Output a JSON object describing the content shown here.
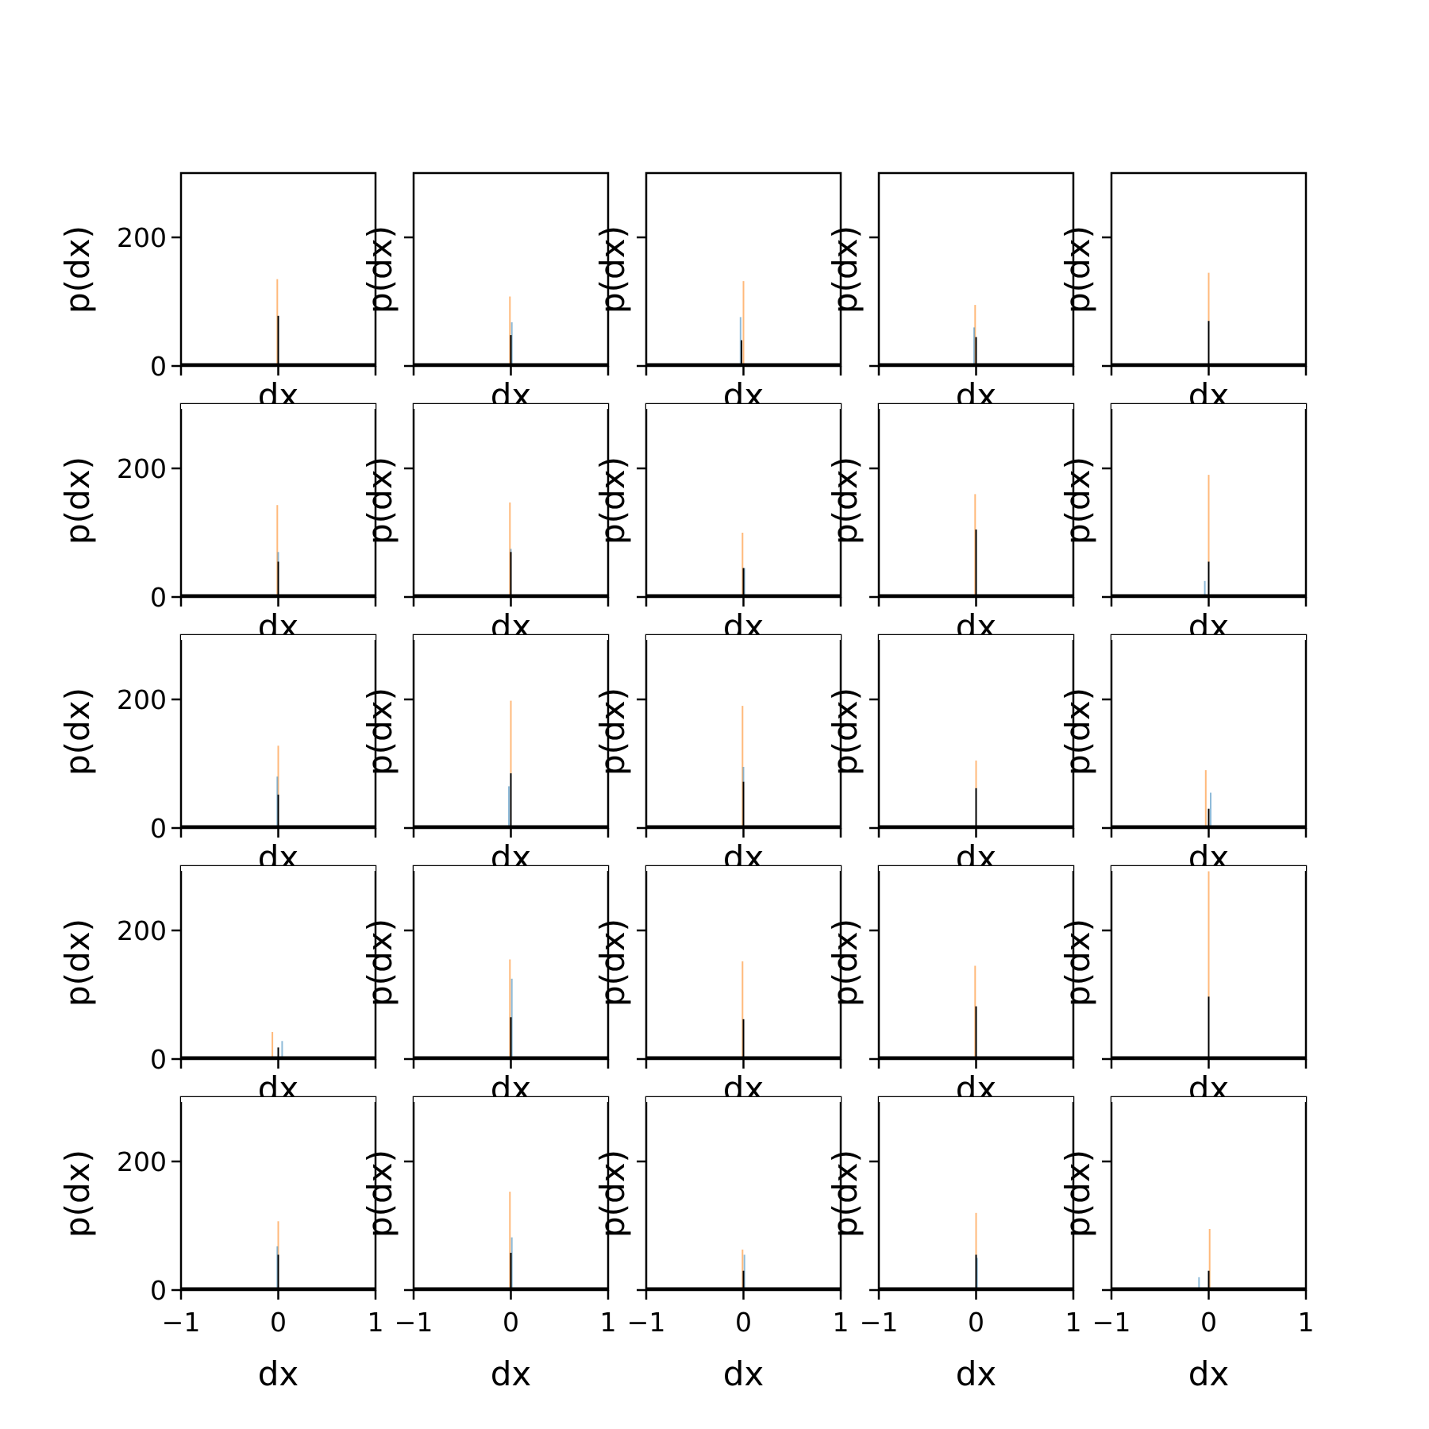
{
  "colors": {
    "series_blue": "#1f77b4",
    "series_orange": "#ff7f0e",
    "overlay_black": "#000000",
    "axes": "#000000",
    "background": "#ffffff"
  },
  "labels": {
    "x": "dx",
    "y": "p(dx)"
  },
  "chart_data": {
    "type": "grid-of-histograms",
    "rows": 5,
    "cols": 5,
    "xlim": [
      -1,
      1
    ],
    "ylim": [
      0,
      300
    ],
    "xticks": [
      -1,
      0,
      1
    ],
    "xtick_labels": [
      "−1",
      "0",
      "1"
    ],
    "yticks": [
      0,
      200
    ],
    "ytick_labels": [
      "0",
      "200"
    ],
    "xlabel": "dx",
    "ylabel": "p(dx)",
    "grid": false,
    "panels": [
      {
        "orange": [
          {
            "x": -0.01,
            "y": 135
          }
        ],
        "blue": [
          {
            "x": 0.0,
            "y": 75
          }
        ],
        "black": [
          {
            "x": 0.0,
            "y": 78
          }
        ]
      },
      {
        "orange": [
          {
            "x": -0.01,
            "y": 108
          }
        ],
        "blue": [
          {
            "x": 0.01,
            "y": 68
          }
        ],
        "black": [
          {
            "x": 0.0,
            "y": 48
          }
        ]
      },
      {
        "orange": [
          {
            "x": 0.0,
            "y": 132
          }
        ],
        "blue": [
          {
            "x": -0.03,
            "y": 76
          }
        ],
        "black": [
          {
            "x": -0.02,
            "y": 40
          }
        ]
      },
      {
        "orange": [
          {
            "x": -0.01,
            "y": 95
          }
        ],
        "blue": [
          {
            "x": -0.02,
            "y": 60
          }
        ],
        "black": [
          {
            "x": 0.0,
            "y": 45
          }
        ]
      },
      {
        "orange": [
          {
            "x": 0.0,
            "y": 145
          }
        ],
        "blue": [
          {
            "x": 0.0,
            "y": 70
          }
        ],
        "black": [
          {
            "x": 0.0,
            "y": 70
          }
        ]
      },
      {
        "orange": [
          {
            "x": -0.01,
            "y": 143
          }
        ],
        "blue": [
          {
            "x": 0.0,
            "y": 70
          }
        ],
        "black": [
          {
            "x": 0.0,
            "y": 55
          }
        ]
      },
      {
        "orange": [
          {
            "x": -0.01,
            "y": 147
          }
        ],
        "blue": [
          {
            "x": 0.0,
            "y": 75
          }
        ],
        "black": [
          {
            "x": 0.0,
            "y": 70
          }
        ]
      },
      {
        "orange": [
          {
            "x": -0.01,
            "y": 100
          }
        ],
        "blue": [
          {
            "x": 0.01,
            "y": 45
          }
        ],
        "black": [
          {
            "x": 0.0,
            "y": 45
          }
        ]
      },
      {
        "orange": [
          {
            "x": -0.01,
            "y": 160
          }
        ],
        "blue": [
          {
            "x": 0.0,
            "y": 100
          }
        ],
        "black": [
          {
            "x": 0.0,
            "y": 105
          }
        ]
      },
      {
        "orange": [
          {
            "x": 0.0,
            "y": 190
          }
        ],
        "blue": [
          {
            "x": -0.04,
            "y": 25
          }
        ],
        "black": [
          {
            "x": 0.0,
            "y": 55
          }
        ]
      },
      {
        "orange": [
          {
            "x": 0.0,
            "y": 128
          }
        ],
        "blue": [
          {
            "x": -0.01,
            "y": 80
          }
        ],
        "black": [
          {
            "x": 0.0,
            "y": 52
          }
        ]
      },
      {
        "orange": [
          {
            "x": 0.0,
            "y": 198
          }
        ],
        "blue": [
          {
            "x": -0.02,
            "y": 65
          }
        ],
        "black": [
          {
            "x": 0.0,
            "y": 85
          }
        ]
      },
      {
        "orange": [
          {
            "x": -0.01,
            "y": 190
          }
        ],
        "blue": [
          {
            "x": 0.0,
            "y": 95
          }
        ],
        "black": [
          {
            "x": 0.0,
            "y": 72
          }
        ]
      },
      {
        "orange": [
          {
            "x": 0.0,
            "y": 105
          }
        ],
        "blue": [
          {
            "x": 0.0,
            "y": 60
          }
        ],
        "black": [
          {
            "x": 0.0,
            "y": 62
          }
        ]
      },
      {
        "orange": [
          {
            "x": -0.03,
            "y": 90
          }
        ],
        "blue": [
          {
            "x": 0.02,
            "y": 55
          }
        ],
        "black": [
          {
            "x": 0.0,
            "y": 30
          }
        ]
      },
      {
        "orange": [
          {
            "x": -0.06,
            "y": 42
          }
        ],
        "blue": [
          {
            "x": 0.04,
            "y": 28
          }
        ],
        "black": [
          {
            "x": 0.0,
            "y": 18
          }
        ]
      },
      {
        "orange": [
          {
            "x": -0.01,
            "y": 155
          }
        ],
        "blue": [
          {
            "x": 0.01,
            "y": 125
          }
        ],
        "black": [
          {
            "x": 0.0,
            "y": 65
          }
        ]
      },
      {
        "orange": [
          {
            "x": -0.01,
            "y": 152
          }
        ],
        "blue": [
          {
            "x": 0.0,
            "y": 60
          }
        ],
        "black": [
          {
            "x": 0.0,
            "y": 62
          }
        ]
      },
      {
        "orange": [
          {
            "x": -0.01,
            "y": 145
          }
        ],
        "blue": [
          {
            "x": 0.0,
            "y": 80
          }
        ],
        "black": [
          {
            "x": 0.0,
            "y": 82
          }
        ]
      },
      {
        "orange": [
          {
            "x": 0.0,
            "y": 292
          }
        ],
        "blue": [
          {
            "x": 0.0,
            "y": 90
          }
        ],
        "black": [
          {
            "x": 0.0,
            "y": 97
          }
        ]
      },
      {
        "orange": [
          {
            "x": 0.0,
            "y": 107
          }
        ],
        "blue": [
          {
            "x": -0.01,
            "y": 68
          }
        ],
        "black": [
          {
            "x": 0.0,
            "y": 55
          }
        ]
      },
      {
        "orange": [
          {
            "x": -0.01,
            "y": 153
          }
        ],
        "blue": [
          {
            "x": 0.01,
            "y": 82
          }
        ],
        "black": [
          {
            "x": 0.0,
            "y": 58
          }
        ]
      },
      {
        "orange": [
          {
            "x": -0.01,
            "y": 63
          }
        ],
        "blue": [
          {
            "x": 0.01,
            "y": 55
          }
        ],
        "black": [
          {
            "x": 0.0,
            "y": 30
          }
        ]
      },
      {
        "orange": [
          {
            "x": 0.0,
            "y": 120
          }
        ],
        "blue": [
          {
            "x": 0.01,
            "y": 50
          }
        ],
        "black": [
          {
            "x": 0.0,
            "y": 55
          }
        ]
      },
      {
        "orange": [
          {
            "x": 0.01,
            "y": 95
          }
        ],
        "blue": [
          {
            "x": -0.1,
            "y": 20
          }
        ],
        "black": [
          {
            "x": 0.0,
            "y": 30
          }
        ]
      }
    ]
  }
}
